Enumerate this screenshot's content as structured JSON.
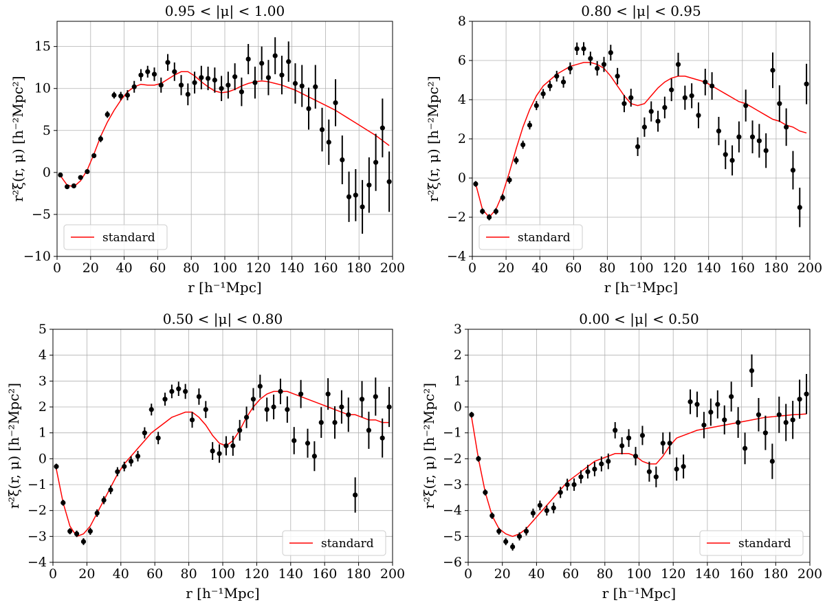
{
  "chart_data": [
    {
      "type": "scatter",
      "title": "0.95 < |μ| < 1.00",
      "xlabel": "r [h⁻¹Mpc]",
      "ylabel": "r²ξ(r, μ) [h⁻²Mpc²]",
      "xlim": [
        0,
        200
      ],
      "ylim": [
        -10,
        18
      ],
      "xticks": [
        0,
        20,
        40,
        60,
        80,
        100,
        120,
        140,
        160,
        180,
        200
      ],
      "yticks": [
        -10,
        -5,
        0,
        5,
        10,
        15
      ],
      "grid": true,
      "legend": {
        "position": "bottom-left",
        "entries": [
          "standard"
        ]
      },
      "points": {
        "x": [
          2,
          6,
          10,
          14,
          18,
          22,
          26,
          30,
          34,
          38,
          42,
          46,
          50,
          54,
          58,
          62,
          66,
          70,
          74,
          78,
          82,
          86,
          90,
          94,
          98,
          102,
          106,
          110,
          114,
          118,
          122,
          126,
          130,
          134,
          138,
          142,
          146,
          150,
          154,
          158,
          162,
          166,
          170,
          174,
          178,
          182,
          186,
          190,
          194,
          198
        ],
        "y": [
          -0.3,
          -1.7,
          -1.6,
          -0.6,
          0.1,
          2.0,
          4.0,
          6.9,
          9.2,
          9.1,
          9.2,
          10.2,
          11.6,
          12.0,
          11.7,
          10.4,
          13.1,
          12.0,
          10.4,
          9.3,
          10.7,
          11.3,
          11.2,
          11.0,
          10.0,
          10.4,
          11.4,
          9.6,
          13.5,
          10.7,
          13.0,
          11.3,
          13.9,
          11.6,
          13.2,
          10.6,
          10.3,
          7.6,
          10.2,
          5.1,
          3.6,
          8.3,
          1.5,
          -2.9,
          -2.7,
          -4.1,
          -1.5,
          1.2,
          5.3,
          -1.1
        ],
        "err": [
          0.2,
          0.2,
          0.2,
          0.2,
          0.2,
          0.3,
          0.4,
          0.4,
          0.4,
          0.5,
          0.6,
          0.7,
          0.7,
          0.7,
          0.8,
          0.9,
          1.0,
          1.1,
          1.2,
          1.3,
          1.3,
          1.4,
          1.4,
          1.5,
          1.5,
          1.6,
          1.6,
          1.7,
          1.8,
          1.9,
          2.0,
          2.1,
          2.2,
          2.3,
          2.4,
          2.4,
          2.5,
          2.5,
          2.6,
          2.6,
          2.7,
          2.8,
          2.9,
          3.0,
          3.1,
          3.2,
          3.3,
          3.4,
          3.5,
          3.6
        ]
      },
      "series": [
        {
          "name": "standard",
          "color": "#ff0000",
          "x": [
            2,
            6,
            10,
            14,
            18,
            22,
            26,
            30,
            34,
            38,
            42,
            46,
            50,
            54,
            58,
            62,
            66,
            70,
            74,
            78,
            82,
            86,
            90,
            94,
            98,
            102,
            106,
            110,
            114,
            118,
            122,
            126,
            130,
            134,
            138,
            142,
            146,
            150,
            154,
            158,
            162,
            166,
            170,
            174,
            178,
            182,
            186,
            190,
            194,
            198
          ],
          "y": [
            -0.4,
            -1.5,
            -1.7,
            -1.0,
            0.3,
            2.2,
            4.3,
            6.0,
            7.4,
            8.6,
            9.6,
            10.2,
            10.5,
            10.4,
            10.4,
            10.6,
            11.1,
            11.6,
            12.0,
            12.0,
            11.5,
            10.8,
            10.2,
            9.7,
            9.5,
            9.6,
            9.9,
            10.3,
            10.6,
            10.8,
            10.9,
            10.8,
            10.6,
            10.4,
            10.1,
            9.8,
            9.4,
            9.0,
            8.6,
            8.2,
            7.8,
            7.4,
            6.9,
            6.4,
            5.9,
            5.4,
            4.9,
            4.4,
            3.8,
            3.2
          ]
        }
      ]
    },
    {
      "type": "scatter",
      "title": "0.80 < |μ| < 0.95",
      "xlabel": "r [h⁻¹Mpc]",
      "ylabel": "r²ξ(r, μ) [h⁻²Mpc²]",
      "xlim": [
        0,
        200
      ],
      "ylim": [
        -4,
        8
      ],
      "xticks": [
        0,
        20,
        40,
        60,
        80,
        100,
        120,
        140,
        160,
        180,
        200
      ],
      "yticks": [
        -4,
        -2,
        0,
        2,
        4,
        6,
        8
      ],
      "grid": true,
      "legend": {
        "position": "bottom-left",
        "entries": [
          "standard"
        ]
      },
      "points": {
        "x": [
          2,
          6,
          10,
          14,
          18,
          22,
          26,
          30,
          34,
          38,
          42,
          46,
          50,
          54,
          58,
          62,
          66,
          70,
          74,
          78,
          82,
          86,
          90,
          94,
          98,
          102,
          106,
          110,
          114,
          118,
          122,
          126,
          130,
          134,
          138,
          142,
          146,
          150,
          154,
          158,
          162,
          166,
          170,
          174,
          178,
          182,
          186,
          190,
          194,
          198
        ],
        "y": [
          -0.3,
          -1.7,
          -2.0,
          -1.7,
          -1.0,
          -0.1,
          0.9,
          1.7,
          2.7,
          3.7,
          4.3,
          4.7,
          5.2,
          4.9,
          5.6,
          6.6,
          6.6,
          6.1,
          5.6,
          5.8,
          6.4,
          5.2,
          3.8,
          4.1,
          1.6,
          2.6,
          3.4,
          2.9,
          3.6,
          4.5,
          5.8,
          4.1,
          4.2,
          3.2,
          4.9,
          4.7,
          2.4,
          1.2,
          0.9,
          2.1,
          3.7,
          2.1,
          1.9,
          1.4,
          5.5,
          3.8,
          2.6,
          0.4,
          -1.5,
          4.8
        ]
      },
      "series": [
        {
          "name": "standard",
          "color": "#ff0000",
          "x": [
            2,
            6,
            10,
            14,
            18,
            22,
            26,
            30,
            34,
            38,
            42,
            46,
            50,
            54,
            58,
            62,
            66,
            70,
            74,
            78,
            82,
            86,
            90,
            94,
            98,
            102,
            106,
            110,
            114,
            118,
            122,
            126,
            130,
            134,
            138,
            142,
            146,
            150,
            154,
            158,
            162,
            166,
            170,
            174,
            178,
            182,
            186,
            190,
            194,
            198
          ],
          "y": [
            -0.3,
            -1.6,
            -2.0,
            -1.6,
            -0.8,
            0.3,
            1.5,
            2.6,
            3.5,
            4.2,
            4.7,
            5.0,
            5.3,
            5.5,
            5.7,
            5.8,
            5.9,
            5.9,
            5.8,
            5.6,
            5.2,
            4.7,
            4.2,
            3.8,
            3.7,
            3.8,
            4.2,
            4.6,
            4.9,
            5.1,
            5.2,
            5.2,
            5.1,
            5.0,
            4.9,
            4.7,
            4.5,
            4.3,
            4.1,
            3.9,
            3.8,
            3.6,
            3.4,
            3.2,
            3.0,
            2.9,
            2.7,
            2.6,
            2.4,
            2.3
          ]
        }
      ]
    },
    {
      "type": "scatter",
      "title": "0.50 < |μ| < 0.80",
      "xlabel": "r [h⁻¹Mpc]",
      "ylabel": "r²ξ(r, μ) [h⁻²Mpc²]",
      "xlim": [
        0,
        200
      ],
      "ylim": [
        -4,
        5
      ],
      "xticks": [
        0,
        20,
        40,
        60,
        80,
        100,
        120,
        140,
        160,
        180,
        200
      ],
      "yticks": [
        -4,
        -3,
        -2,
        -1,
        0,
        1,
        2,
        3,
        4,
        5
      ],
      "grid": true,
      "legend": {
        "position": "bottom-right",
        "entries": [
          "standard"
        ]
      },
      "points": {
        "x": [
          2,
          6,
          10,
          14,
          18,
          22,
          26,
          30,
          34,
          38,
          42,
          46,
          50,
          54,
          58,
          62,
          66,
          70,
          74,
          78,
          82,
          86,
          90,
          94,
          98,
          102,
          106,
          110,
          114,
          118,
          122,
          126,
          130,
          134,
          138,
          142,
          146,
          150,
          154,
          158,
          162,
          166,
          170,
          174,
          178,
          182,
          186,
          190,
          194,
          198
        ],
        "y": [
          -0.3,
          -1.7,
          -2.8,
          -2.9,
          -3.2,
          -2.8,
          -2.1,
          -1.6,
          -1.2,
          -0.5,
          -0.3,
          -0.1,
          0.1,
          1.0,
          1.9,
          0.8,
          2.3,
          2.6,
          2.7,
          2.6,
          1.5,
          2.4,
          1.9,
          0.3,
          0.2,
          0.5,
          0.5,
          1.1,
          1.6,
          2.3,
          2.8,
          1.9,
          2.0,
          2.6,
          1.9,
          0.7,
          2.5,
          0.6,
          0.1,
          1.4,
          2.5,
          1.4,
          2.0,
          1.7,
          -1.4,
          2.3,
          1.1,
          2.4,
          0.8,
          2.0
        ]
      },
      "series": [
        {
          "name": "standard",
          "color": "#ff0000",
          "x": [
            2,
            6,
            10,
            14,
            18,
            22,
            26,
            30,
            34,
            38,
            42,
            46,
            50,
            54,
            58,
            62,
            66,
            70,
            74,
            78,
            82,
            86,
            90,
            94,
            98,
            102,
            106,
            110,
            114,
            118,
            122,
            126,
            130,
            134,
            138,
            142,
            146,
            150,
            154,
            158,
            162,
            166,
            170,
            174,
            178,
            182,
            186,
            190,
            194,
            198
          ],
          "y": [
            -0.4,
            -1.7,
            -2.6,
            -3.0,
            -2.9,
            -2.6,
            -2.1,
            -1.6,
            -1.1,
            -0.6,
            -0.2,
            0.1,
            0.4,
            0.7,
            1.0,
            1.2,
            1.4,
            1.6,
            1.7,
            1.8,
            1.8,
            1.6,
            1.3,
            0.9,
            0.6,
            0.5,
            0.7,
            1.1,
            1.6,
            2.0,
            2.3,
            2.5,
            2.6,
            2.6,
            2.6,
            2.5,
            2.4,
            2.3,
            2.2,
            2.1,
            2.0,
            1.9,
            1.8,
            1.7,
            1.7,
            1.6,
            1.5,
            1.5,
            1.4,
            1.4
          ]
        }
      ]
    },
    {
      "type": "scatter",
      "title": "0.00 < |μ| < 0.50",
      "xlabel": "r [h⁻¹Mpc]",
      "ylabel": "r²ξ(r, μ) [h⁻²Mpc²]",
      "xlim": [
        0,
        200
      ],
      "ylim": [
        -6,
        3
      ],
      "xticks": [
        0,
        20,
        40,
        60,
        80,
        100,
        120,
        140,
        160,
        180,
        200
      ],
      "yticks": [
        -6,
        -5,
        -4,
        -3,
        -2,
        -1,
        0,
        1,
        2,
        3
      ],
      "grid": true,
      "legend": {
        "position": "bottom-right",
        "entries": [
          "standard"
        ]
      },
      "points": {
        "x": [
          2,
          6,
          10,
          14,
          18,
          22,
          26,
          30,
          34,
          38,
          42,
          46,
          50,
          54,
          58,
          62,
          66,
          70,
          74,
          78,
          82,
          86,
          90,
          94,
          98,
          102,
          106,
          110,
          114,
          118,
          122,
          126,
          130,
          134,
          138,
          142,
          146,
          150,
          154,
          158,
          162,
          166,
          170,
          174,
          178,
          182,
          186,
          190,
          194,
          198
        ],
        "y": [
          -0.3,
          -2.0,
          -3.3,
          -4.2,
          -4.8,
          -5.2,
          -5.4,
          -5.0,
          -4.8,
          -4.1,
          -3.8,
          -4.0,
          -3.9,
          -3.3,
          -3.0,
          -3.0,
          -2.7,
          -2.5,
          -2.4,
          -2.2,
          -2.1,
          -0.9,
          -1.5,
          -1.2,
          -1.9,
          -1.1,
          -2.5,
          -2.7,
          -1.4,
          -1.4,
          -2.4,
          -2.3,
          0.2,
          0.1,
          -0.7,
          -0.2,
          0.1,
          -0.5,
          0.4,
          -0.6,
          -1.6,
          1.4,
          -0.3,
          -1.0,
          -2.1,
          -0.3,
          -0.6,
          -0.5,
          0.3,
          0.5
        ]
      },
      "series": [
        {
          "name": "standard",
          "color": "#ff0000",
          "x": [
            2,
            6,
            10,
            14,
            18,
            22,
            26,
            30,
            34,
            38,
            42,
            46,
            50,
            54,
            58,
            62,
            66,
            70,
            74,
            78,
            82,
            86,
            90,
            94,
            98,
            102,
            106,
            110,
            114,
            118,
            122,
            126,
            130,
            134,
            138,
            142,
            146,
            150,
            154,
            158,
            162,
            166,
            170,
            174,
            178,
            182,
            186,
            190,
            194,
            198
          ],
          "y": [
            -0.4,
            -2.0,
            -3.3,
            -4.2,
            -4.7,
            -4.9,
            -5.0,
            -4.9,
            -4.7,
            -4.4,
            -4.1,
            -3.8,
            -3.5,
            -3.2,
            -2.9,
            -2.7,
            -2.5,
            -2.3,
            -2.1,
            -2.0,
            -1.9,
            -1.8,
            -1.8,
            -1.8,
            -1.9,
            -2.1,
            -2.2,
            -2.2,
            -1.9,
            -1.5,
            -1.2,
            -1.1,
            -1.0,
            -0.9,
            -0.85,
            -0.8,
            -0.75,
            -0.7,
            -0.65,
            -0.6,
            -0.55,
            -0.5,
            -0.45,
            -0.4,
            -0.38,
            -0.35,
            -0.33,
            -0.3,
            -0.29,
            -0.27
          ]
        }
      ]
    }
  ]
}
